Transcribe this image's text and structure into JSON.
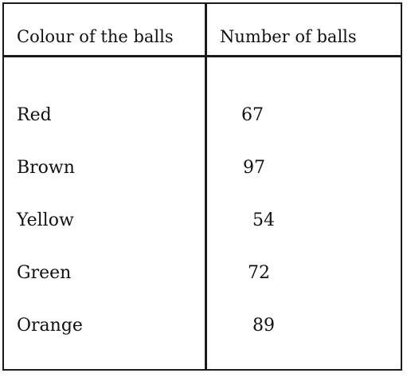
{
  "table": {
    "headers": {
      "colour": "Colour of the balls",
      "number": "Number of balls"
    },
    "rows": [
      {
        "colour": "Red",
        "number": "67"
      },
      {
        "colour": "Brown",
        "number": "97"
      },
      {
        "colour": "Yellow",
        "number": "54"
      },
      {
        "colour": "Green",
        "number": "72"
      },
      {
        "colour": "Orange",
        "number": "89"
      }
    ]
  }
}
